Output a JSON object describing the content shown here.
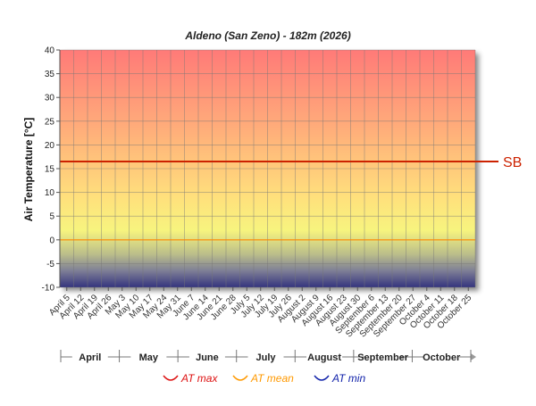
{
  "chart_data": {
    "type": "line",
    "title": "Aldeno (San Zeno) - 182m (2026)",
    "ylabel": "Air Temperature [°C]",
    "xlabel": "",
    "ylim": [
      -10,
      40
    ],
    "y_ticks": [
      -10,
      -5,
      0,
      5,
      10,
      15,
      20,
      25,
      30,
      35,
      40
    ],
    "grid": true,
    "x_ticks": [
      "April 5",
      "April 12",
      "April 19",
      "April 26",
      "May 3",
      "May 10",
      "May 17",
      "May 24",
      "May 31",
      "June 7",
      "June 14",
      "June 21",
      "June 28",
      "July 5",
      "July 12",
      "July 19",
      "July 26",
      "August 2",
      "August 9",
      "August 16",
      "August 23",
      "August 30",
      "September 6",
      "September 13",
      "September 20",
      "September 27",
      "October 4",
      "October 11",
      "October 18",
      "October 25"
    ],
    "months": [
      "April",
      "May",
      "June",
      "July",
      "August",
      "September",
      "October"
    ],
    "reference_lines": [
      {
        "label": "SB",
        "value": 16.5,
        "color": "#cc2200"
      },
      {
        "label": "",
        "value": 0,
        "color": "#ff8800"
      }
    ],
    "series": [
      {
        "name": "AT max",
        "color": "#dd1111",
        "values": []
      },
      {
        "name": "AT mean",
        "color": "#ff9900",
        "values": []
      },
      {
        "name": "AT min",
        "color": "#1122aa",
        "values": []
      }
    ],
    "legend_position": "bottom"
  }
}
